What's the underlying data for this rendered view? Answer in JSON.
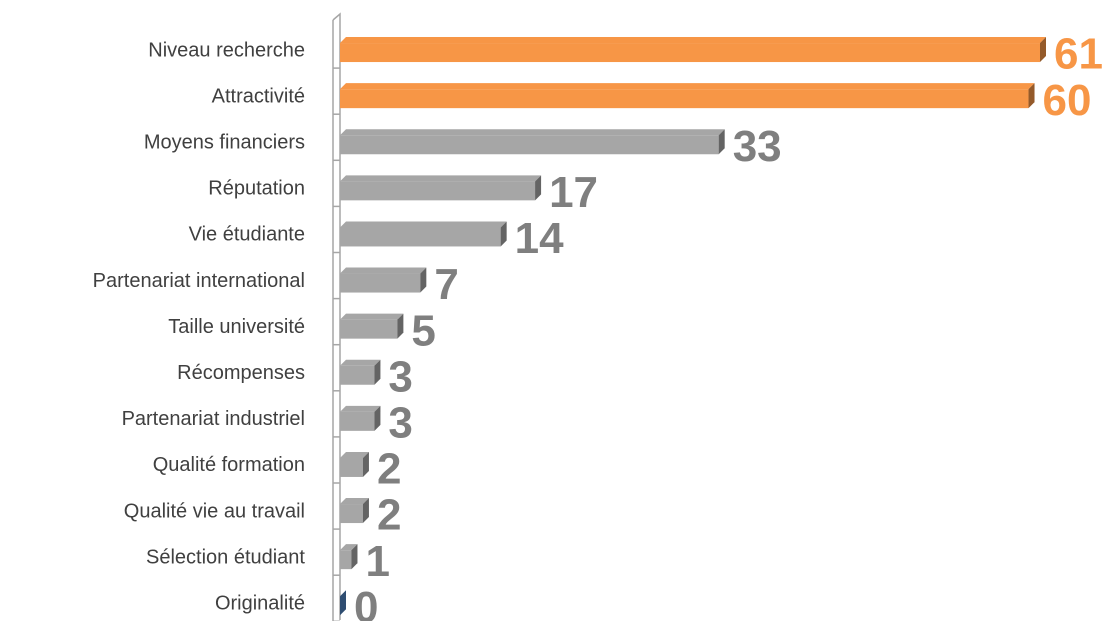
{
  "chart_data": {
    "type": "bar",
    "orientation": "horizontal",
    "categories": [
      "Niveau recherche",
      "Attractivité",
      "Moyens financiers",
      "Réputation",
      "Vie étudiante",
      "Partenariat international",
      "Taille université",
      "Récompenses",
      "Partenariat industriel",
      "Qualité formation",
      "Qualité vie au travail",
      "Sélection étudiant",
      "Originalité"
    ],
    "values": [
      61,
      60,
      33,
      17,
      14,
      7,
      5,
      3,
      3,
      2,
      2,
      1,
      0
    ],
    "colors": [
      "#f79646",
      "#f79646",
      "#a6a6a6",
      "#a6a6a6",
      "#a6a6a6",
      "#a6a6a6",
      "#a6a6a6",
      "#a6a6a6",
      "#a6a6a6",
      "#a6a6a6",
      "#a6a6a6",
      "#a6a6a6",
      "#4f81bd"
    ],
    "label_colors": [
      "#f79646",
      "#f79646",
      "#7f7f7f",
      "#7f7f7f",
      "#7f7f7f",
      "#7f7f7f",
      "#7f7f7f",
      "#7f7f7f",
      "#7f7f7f",
      "#7f7f7f",
      "#7f7f7f",
      "#7f7f7f",
      "#7f7f7f"
    ]
  }
}
